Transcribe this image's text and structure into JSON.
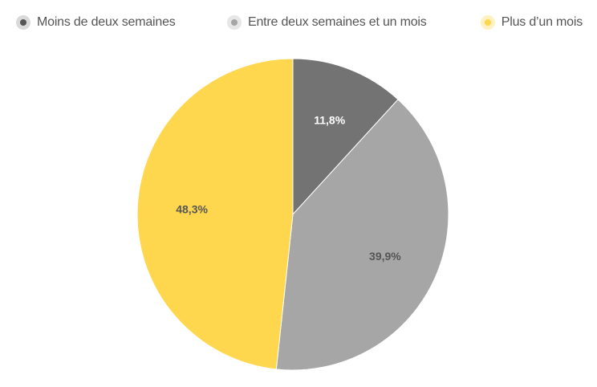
{
  "chart_data": {
    "type": "pie",
    "categories": [
      "Moins de deux semaines",
      "Entre deux semaines et un mois",
      "Plus d’un mois"
    ],
    "values": [
      11.8,
      39.9,
      48.3
    ],
    "labels": [
      "11,8%",
      "39,9%",
      "48,3%"
    ],
    "colors": [
      "#737373",
      "#a6a6a6",
      "#ffd74f"
    ],
    "label_colors": [
      "#ffffff",
      "#555555",
      "#555555"
    ],
    "legend_position": "top",
    "start_angle_deg": 0,
    "direction": "clockwise"
  }
}
